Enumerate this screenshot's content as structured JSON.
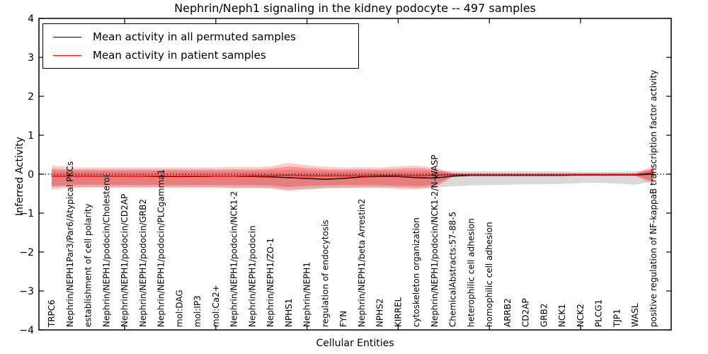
{
  "figure": {
    "title": "Nephrin/Neph1 signaling in the kidney podocyte -- 497 samples",
    "xlabel": "Cellular Entities",
    "ylabel": "Inferred Activity"
  },
  "legend": {
    "items": [
      {
        "label": "Mean activity in all permuted samples",
        "color": "#000000"
      },
      {
        "label": "Mean activity in patient samples",
        "color": "#ff0000"
      }
    ]
  },
  "chart_data": {
    "type": "line",
    "title": "Nephrin/Neph1 signaling in the kidney podocyte -- 497 samples",
    "xlabel": "Cellular Entities",
    "ylabel": "Inferred Activity",
    "ylim": [
      -4,
      4
    ],
    "yticks": [
      4,
      3,
      2,
      1,
      0,
      -1,
      -2,
      -3,
      -4
    ],
    "ytick_labels": [
      "4",
      "3",
      "2",
      "1",
      "0",
      "−1",
      "−2",
      "−3",
      "−4"
    ],
    "xticks": [
      5,
      10,
      15,
      20,
      25,
      30
    ],
    "grid": false,
    "legend_position": "upper left",
    "zero_line": {
      "y": 0,
      "style": "dotted",
      "color": "#000000"
    },
    "categories": [
      "TRPC6",
      "Nephrin/NEPH1Par3/Par6/Atypical PKCs",
      "establishment of cell polarity",
      "Nephrin/NEPH1/podocin/Cholesterol",
      "Nephrin/NEPH1/podocin/CD2AP",
      "Nephrin/NEPH1/podocin/GRB2",
      "Nephrin/NEPH1/podocin/PLCgamma1",
      "mol:DAG",
      "mol:IP3",
      "mol:Ca2+",
      "Nephrin/NEPH1/podocin/NCK1-2",
      "Nephrin/NEPH1/podocin",
      "Nephrin/NEPH1/ZO-1",
      "NPHS1",
      "Nephrin/NEPH1",
      "regulation of endocytosis",
      "FYN",
      "Nephrin/NEPH1/beta Arrestin2",
      "NPHS2",
      "KIRREL",
      "cytoskeleton organization",
      "Nephrin/NEPH1/podocin/NCK1-2/N-WASP",
      "ChemicalAbstracts:57-88-5",
      "heterophilic cell adhesion",
      "homophilic cell adhesion",
      "ARRB2",
      "CD2AP",
      "GRB2",
      "NCK1",
      "NCK2",
      "PLCG1",
      "TJP1",
      "WASL",
      "positive regulation of NF-kappaB transcription factor activity"
    ],
    "series": [
      {
        "name": "Mean activity in all permuted samples",
        "color": "#000000",
        "values": [
          -0.05,
          -0.05,
          -0.05,
          -0.05,
          -0.05,
          -0.05,
          -0.06,
          -0.06,
          -0.06,
          -0.05,
          -0.05,
          -0.06,
          -0.07,
          -0.09,
          -0.11,
          -0.13,
          -0.11,
          -0.07,
          -0.06,
          -0.06,
          -0.09,
          -0.1,
          -0.05,
          -0.03,
          -0.03,
          -0.03,
          -0.03,
          -0.03,
          -0.03,
          -0.02,
          -0.02,
          -0.02,
          -0.02,
          0.0
        ]
      },
      {
        "name": "Mean activity in patient samples",
        "color": "#ff0000",
        "values": [
          -0.05,
          -0.05,
          -0.05,
          -0.05,
          -0.05,
          -0.05,
          -0.05,
          -0.05,
          -0.05,
          -0.05,
          -0.05,
          -0.04,
          -0.04,
          -0.03,
          -0.04,
          -0.04,
          -0.04,
          -0.04,
          -0.03,
          -0.03,
          -0.04,
          -0.03,
          -0.02,
          -0.02,
          -0.02,
          -0.02,
          -0.02,
          -0.02,
          -0.02,
          -0.01,
          -0.01,
          -0.01,
          -0.01,
          0.04
        ]
      }
    ],
    "bands": [
      {
        "name": "permuted-range",
        "color": "rgba(130,130,130,0.30)",
        "upper": [
          0.09,
          0.08,
          0.08,
          0.08,
          0.08,
          0.08,
          0.08,
          0.08,
          0.08,
          0.08,
          0.08,
          0.08,
          0.09,
          0.11,
          0.09,
          0.08,
          0.08,
          0.08,
          0.08,
          0.08,
          0.09,
          0.08,
          0.08,
          0.07,
          0.07,
          0.07,
          0.07,
          0.07,
          0.07,
          0.06,
          0.06,
          0.06,
          0.07,
          0.11
        ],
        "lower": [
          -0.33,
          -0.33,
          -0.33,
          -0.33,
          -0.33,
          -0.33,
          -0.33,
          -0.33,
          -0.33,
          -0.33,
          -0.35,
          -0.35,
          -0.35,
          -0.4,
          -0.38,
          -0.36,
          -0.35,
          -0.34,
          -0.34,
          -0.34,
          -0.36,
          -0.34,
          -0.31,
          -0.29,
          -0.28,
          -0.27,
          -0.26,
          -0.26,
          -0.25,
          -0.23,
          -0.22,
          -0.24,
          -0.27,
          -0.18
        ]
      },
      {
        "name": "patient-outer-range",
        "color": "rgba(255,0,0,0.20)",
        "upper": [
          0.22,
          0.18,
          0.17,
          0.17,
          0.17,
          0.17,
          0.17,
          0.17,
          0.17,
          0.17,
          0.19,
          0.18,
          0.2,
          0.29,
          0.23,
          0.19,
          0.17,
          0.18,
          0.17,
          0.2,
          0.22,
          0.17,
          0.03,
          0.02,
          0.02,
          0.02,
          0.02,
          0.02,
          0.02,
          0.02,
          0.02,
          0.02,
          0.02,
          0.22
        ],
        "lower": [
          -0.4,
          -0.35,
          -0.34,
          -0.34,
          -0.35,
          -0.35,
          -0.35,
          -0.35,
          -0.35,
          -0.35,
          -0.36,
          -0.35,
          -0.37,
          -0.43,
          -0.39,
          -0.36,
          -0.35,
          -0.35,
          -0.35,
          -0.38,
          -0.39,
          -0.35,
          -0.07,
          -0.05,
          -0.05,
          -0.05,
          -0.05,
          -0.05,
          -0.05,
          -0.04,
          -0.04,
          -0.04,
          -0.04,
          -0.27
        ]
      },
      {
        "name": "patient-inner-range",
        "color": "rgba(255,0,0,0.28)",
        "upper": [
          0.14,
          0.12,
          0.12,
          0.12,
          0.12,
          0.12,
          0.12,
          0.12,
          0.12,
          0.12,
          0.13,
          0.12,
          0.14,
          0.2,
          0.16,
          0.13,
          0.12,
          0.13,
          0.12,
          0.14,
          0.16,
          0.12,
          0.02,
          0.01,
          0.01,
          0.01,
          0.01,
          0.01,
          0.01,
          0.01,
          0.01,
          0.01,
          0.01,
          0.15
        ],
        "lower": [
          -0.31,
          -0.27,
          -0.27,
          -0.27,
          -0.28,
          -0.28,
          -0.28,
          -0.28,
          -0.28,
          -0.28,
          -0.28,
          -0.28,
          -0.29,
          -0.33,
          -0.3,
          -0.29,
          -0.28,
          -0.28,
          -0.28,
          -0.3,
          -0.31,
          -0.28,
          -0.05,
          -0.04,
          -0.04,
          -0.04,
          -0.04,
          -0.04,
          -0.04,
          -0.03,
          -0.03,
          -0.03,
          -0.03,
          -0.2
        ]
      }
    ]
  }
}
